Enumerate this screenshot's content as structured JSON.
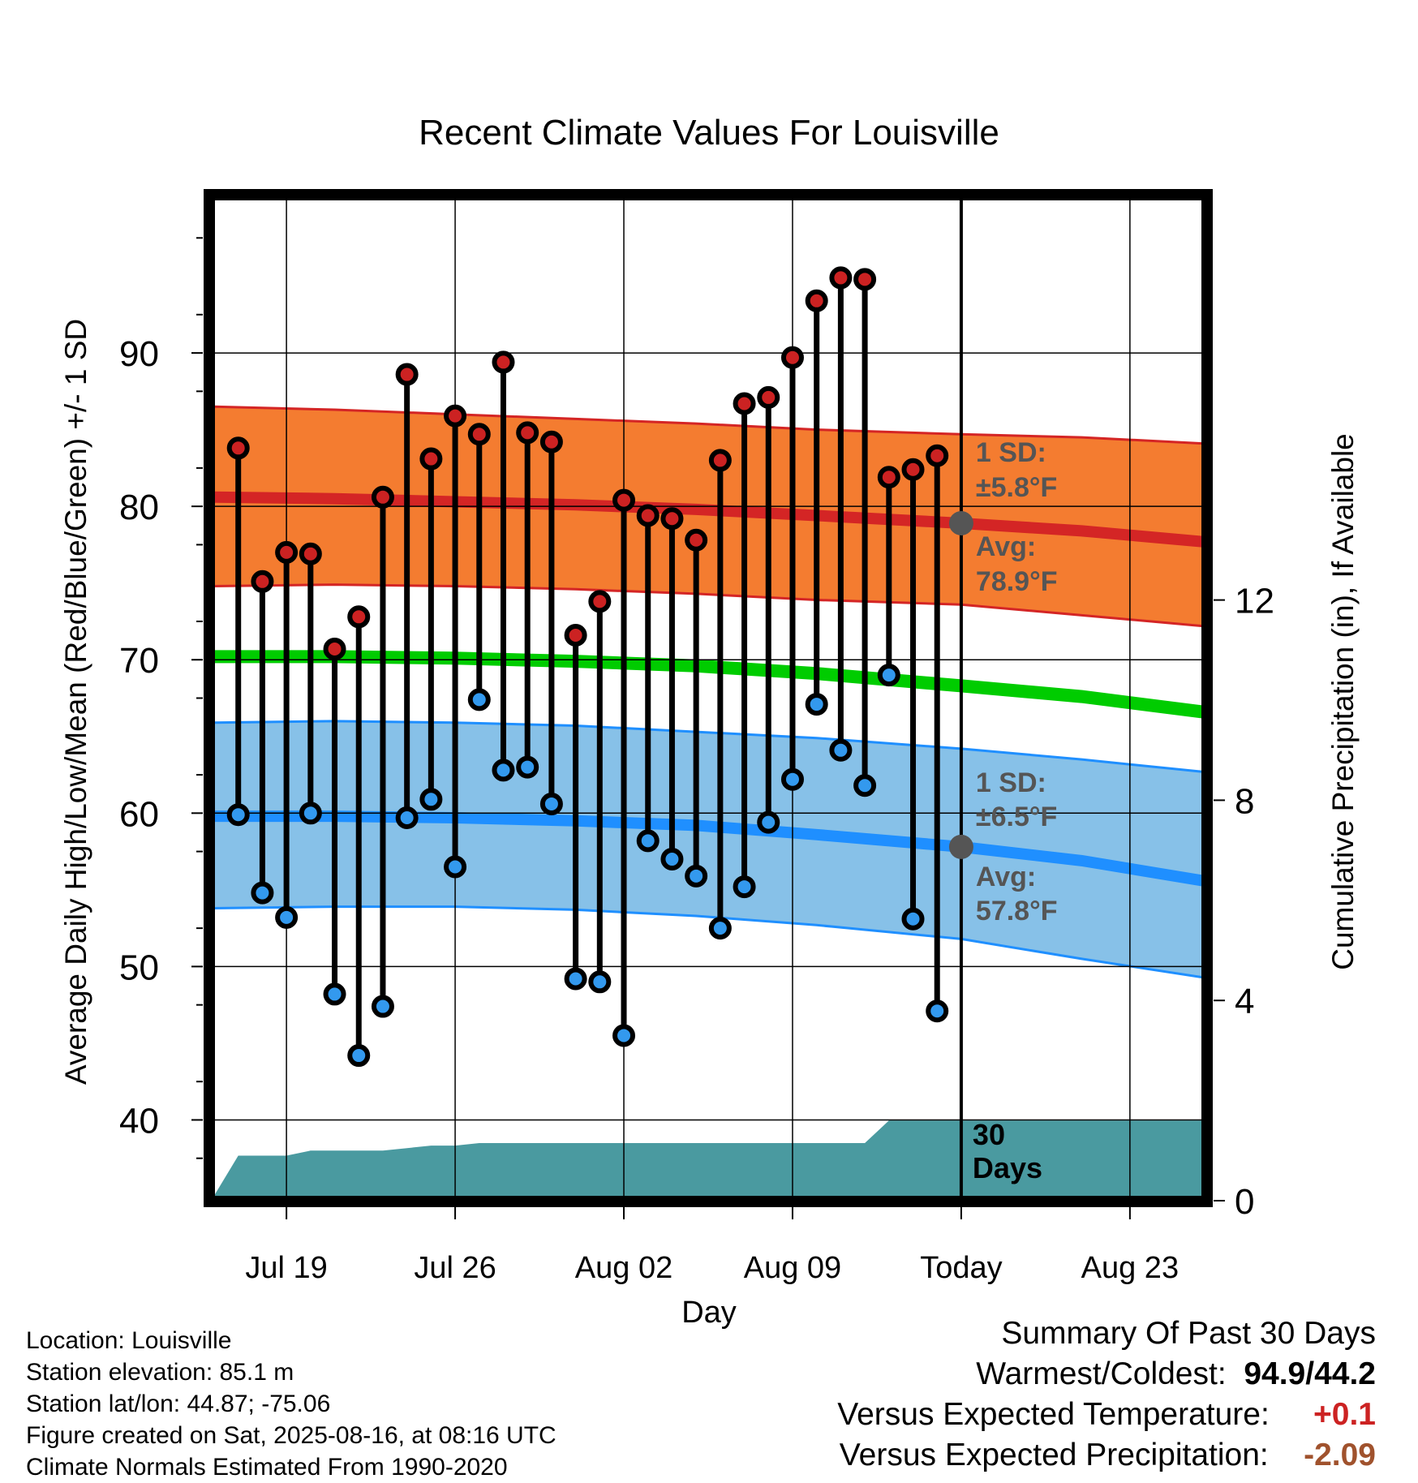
{
  "chart_data": {
    "type": "line",
    "title": "Recent Climate Values For Louisville",
    "xlabel": "Day",
    "ylabel_left": "Average Daily High/Low/Mean (Red/Blue/Green) +/- 1 SD",
    "ylabel_right": "Cumulative Precipitation (in), If Available",
    "x_ticks": [
      "Jul 19",
      "Jul 26",
      "Aug 02",
      "Aug 09",
      "Today",
      "Aug 23"
    ],
    "x_range": [
      "2025-07-16",
      "2025-08-26"
    ],
    "today": "2025-08-16",
    "ylim": [
      35,
      100
    ],
    "y_ticks": [
      40,
      50,
      60,
      70,
      80,
      90
    ],
    "y2lim": [
      0,
      20
    ],
    "y2_ticks": [
      0,
      4,
      8,
      12
    ],
    "grid": true,
    "series": [
      {
        "name": "High",
        "color": "#cc2222",
        "x": [
          "2025-07-17",
          "2025-07-18",
          "2025-07-19",
          "2025-07-20",
          "2025-07-21",
          "2025-07-22",
          "2025-07-23",
          "2025-07-24",
          "2025-07-25",
          "2025-07-26",
          "2025-07-27",
          "2025-07-28",
          "2025-07-29",
          "2025-07-30",
          "2025-07-31",
          "2025-08-01",
          "2025-08-02",
          "2025-08-03",
          "2025-08-04",
          "2025-08-05",
          "2025-08-06",
          "2025-08-07",
          "2025-08-08",
          "2025-08-09",
          "2025-08-10",
          "2025-08-11",
          "2025-08-12",
          "2025-08-13",
          "2025-08-14",
          "2025-08-15"
        ],
        "values": [
          83.8,
          75.1,
          77.0,
          76.9,
          70.7,
          72.8,
          80.6,
          88.6,
          83.1,
          85.9,
          84.7,
          89.4,
          84.8,
          84.2,
          71.6,
          73.8,
          80.4,
          79.4,
          79.2,
          77.8,
          83.0,
          86.7,
          87.1,
          89.7,
          93.4,
          94.9,
          94.8,
          81.9,
          82.4,
          83.3
        ]
      },
      {
        "name": "Low",
        "color": "#3399ee",
        "x": [
          "2025-07-17",
          "2025-07-18",
          "2025-07-19",
          "2025-07-20",
          "2025-07-21",
          "2025-07-22",
          "2025-07-23",
          "2025-07-24",
          "2025-07-25",
          "2025-07-26",
          "2025-07-27",
          "2025-07-28",
          "2025-07-29",
          "2025-07-30",
          "2025-07-31",
          "2025-08-01",
          "2025-08-02",
          "2025-08-03",
          "2025-08-04",
          "2025-08-05",
          "2025-08-06",
          "2025-08-07",
          "2025-08-08",
          "2025-08-09",
          "2025-08-10",
          "2025-08-11",
          "2025-08-12",
          "2025-08-13",
          "2025-08-14",
          "2025-08-15"
        ],
        "values": [
          59.9,
          54.8,
          53.2,
          60.0,
          48.2,
          44.2,
          47.4,
          59.7,
          60.9,
          56.5,
          67.4,
          62.8,
          63.0,
          60.6,
          49.2,
          49.0,
          45.5,
          58.2,
          57.0,
          55.9,
          52.5,
          55.2,
          59.4,
          62.2,
          67.1,
          64.1,
          61.8,
          69.0,
          53.1,
          47.1
        ]
      }
    ],
    "normals": {
      "dates": [
        "2025-07-16",
        "2025-07-21",
        "2025-07-26",
        "2025-07-31",
        "2025-08-05",
        "2025-08-10",
        "2025-08-16",
        "2025-08-21",
        "2025-08-26"
      ],
      "high_avg": [
        80.6,
        80.5,
        80.3,
        80.1,
        79.8,
        79.4,
        78.9,
        78.4,
        77.7
      ],
      "high_upper": [
        86.5,
        86.3,
        86.0,
        85.7,
        85.4,
        85.0,
        84.7,
        84.5,
        84.1
      ],
      "high_lower": [
        74.8,
        74.9,
        74.8,
        74.6,
        74.3,
        73.9,
        73.6,
        72.9,
        72.2
      ],
      "mean_avg": [
        70.2,
        70.2,
        70.1,
        69.9,
        69.6,
        69.1,
        68.3,
        67.6,
        66.6
      ],
      "low_avg": [
        59.8,
        59.8,
        59.7,
        59.5,
        59.2,
        58.6,
        57.8,
        56.9,
        55.6
      ],
      "low_upper": [
        65.9,
        66.0,
        65.9,
        65.7,
        65.3,
        64.9,
        64.2,
        63.5,
        62.7
      ],
      "low_lower": [
        53.8,
        53.9,
        53.9,
        53.7,
        53.3,
        52.7,
        51.8,
        50.5,
        49.3
      ]
    },
    "precip_cumulative": {
      "x": [
        "2025-07-16",
        "2025-07-17",
        "2025-07-19",
        "2025-07-20",
        "2025-07-21",
        "2025-07-22",
        "2025-07-23",
        "2025-07-24",
        "2025-07-25",
        "2025-07-26",
        "2025-07-27",
        "2025-08-03",
        "2025-08-10",
        "2025-08-12",
        "2025-08-13",
        "2025-08-26"
      ],
      "values": [
        0.1,
        0.9,
        0.9,
        1.0,
        1.0,
        1.0,
        1.0,
        1.05,
        1.1,
        1.1,
        1.15,
        1.15,
        1.15,
        1.15,
        1.6,
        1.6
      ]
    },
    "annotations": {
      "high_sd_label": "1 SD:",
      "high_sd_value": "±5.8°F",
      "high_avg_label": "Avg:",
      "high_avg_value": "78.9°F",
      "low_sd_label": "1 SD:",
      "low_sd_value": "±6.5°F",
      "low_avg_label": "Avg:",
      "low_avg_value": "57.8°F",
      "window_line1": "30",
      "window_line2": "Days"
    },
    "colors": {
      "high_band": "#f47c30",
      "high_line": "#d42525",
      "low_band": "#87c1e8",
      "low_line": "#1f8fff",
      "mean_line": "#00cc00",
      "precip_fill": "#4a9aa0",
      "annot_text": "#555555",
      "positive": "#cc2222",
      "negative": "#a0522d"
    }
  },
  "info": {
    "location": "Location: Louisville",
    "elevation": "Station elevation: 85.1 m",
    "latlon": "Station lat/lon: 44.87; -75.06",
    "created": "Figure created on Sat, 2025-08-16, at 08:16 UTC",
    "normals": "Climate Normals Estimated From 1990-2020"
  },
  "summary": {
    "title": "Summary Of Past 30 Days",
    "warm_cold_label": "Warmest/Coldest:",
    "warm_cold_value": "94.9/44.2",
    "temp_label": "Versus Expected Temperature:",
    "temp_value": "+0.1",
    "precip_label": "Versus Expected Precipitation:",
    "precip_value": "-2.09"
  }
}
